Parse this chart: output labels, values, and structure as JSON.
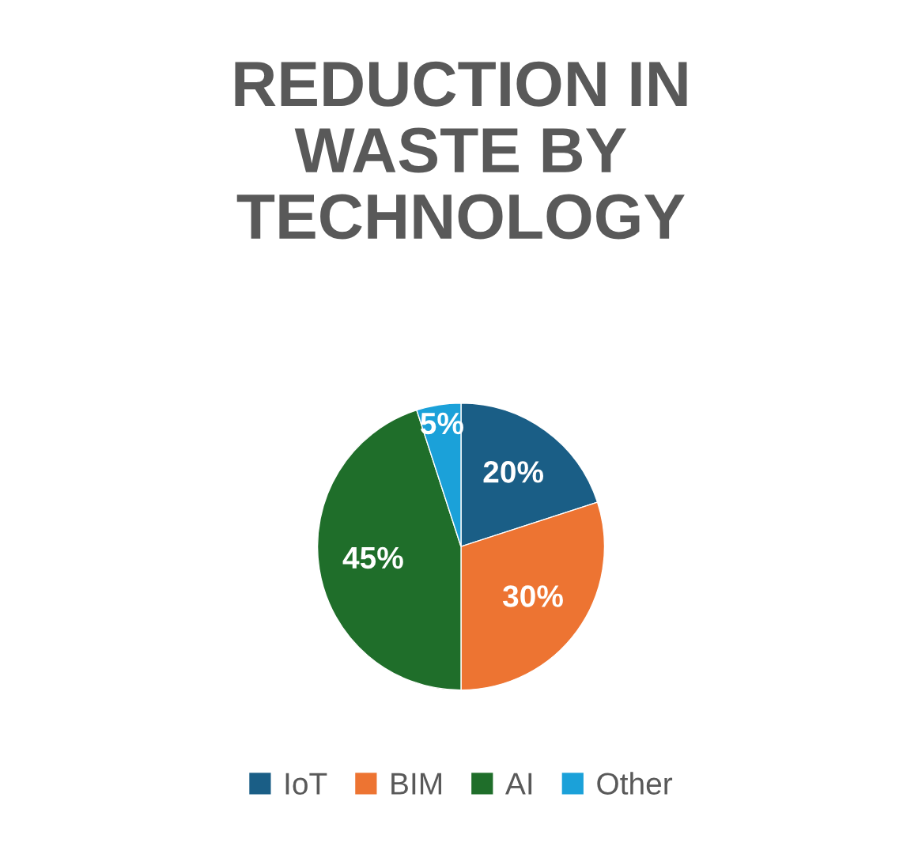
{
  "chart_data": {
    "type": "pie",
    "title": "REDUCTION IN\nWASTE BY\nTECHNOLOGY",
    "categories": [
      "IoT",
      "BIM",
      "AI",
      "Other"
    ],
    "values": [
      20,
      30,
      45,
      5
    ],
    "colors": [
      "#1a5e86",
      "#ed7432",
      "#1f6e2a",
      "#1ba1d9"
    ],
    "value_labels": [
      "20%",
      "30%",
      "45%",
      "5%"
    ],
    "legend": "bottom"
  }
}
